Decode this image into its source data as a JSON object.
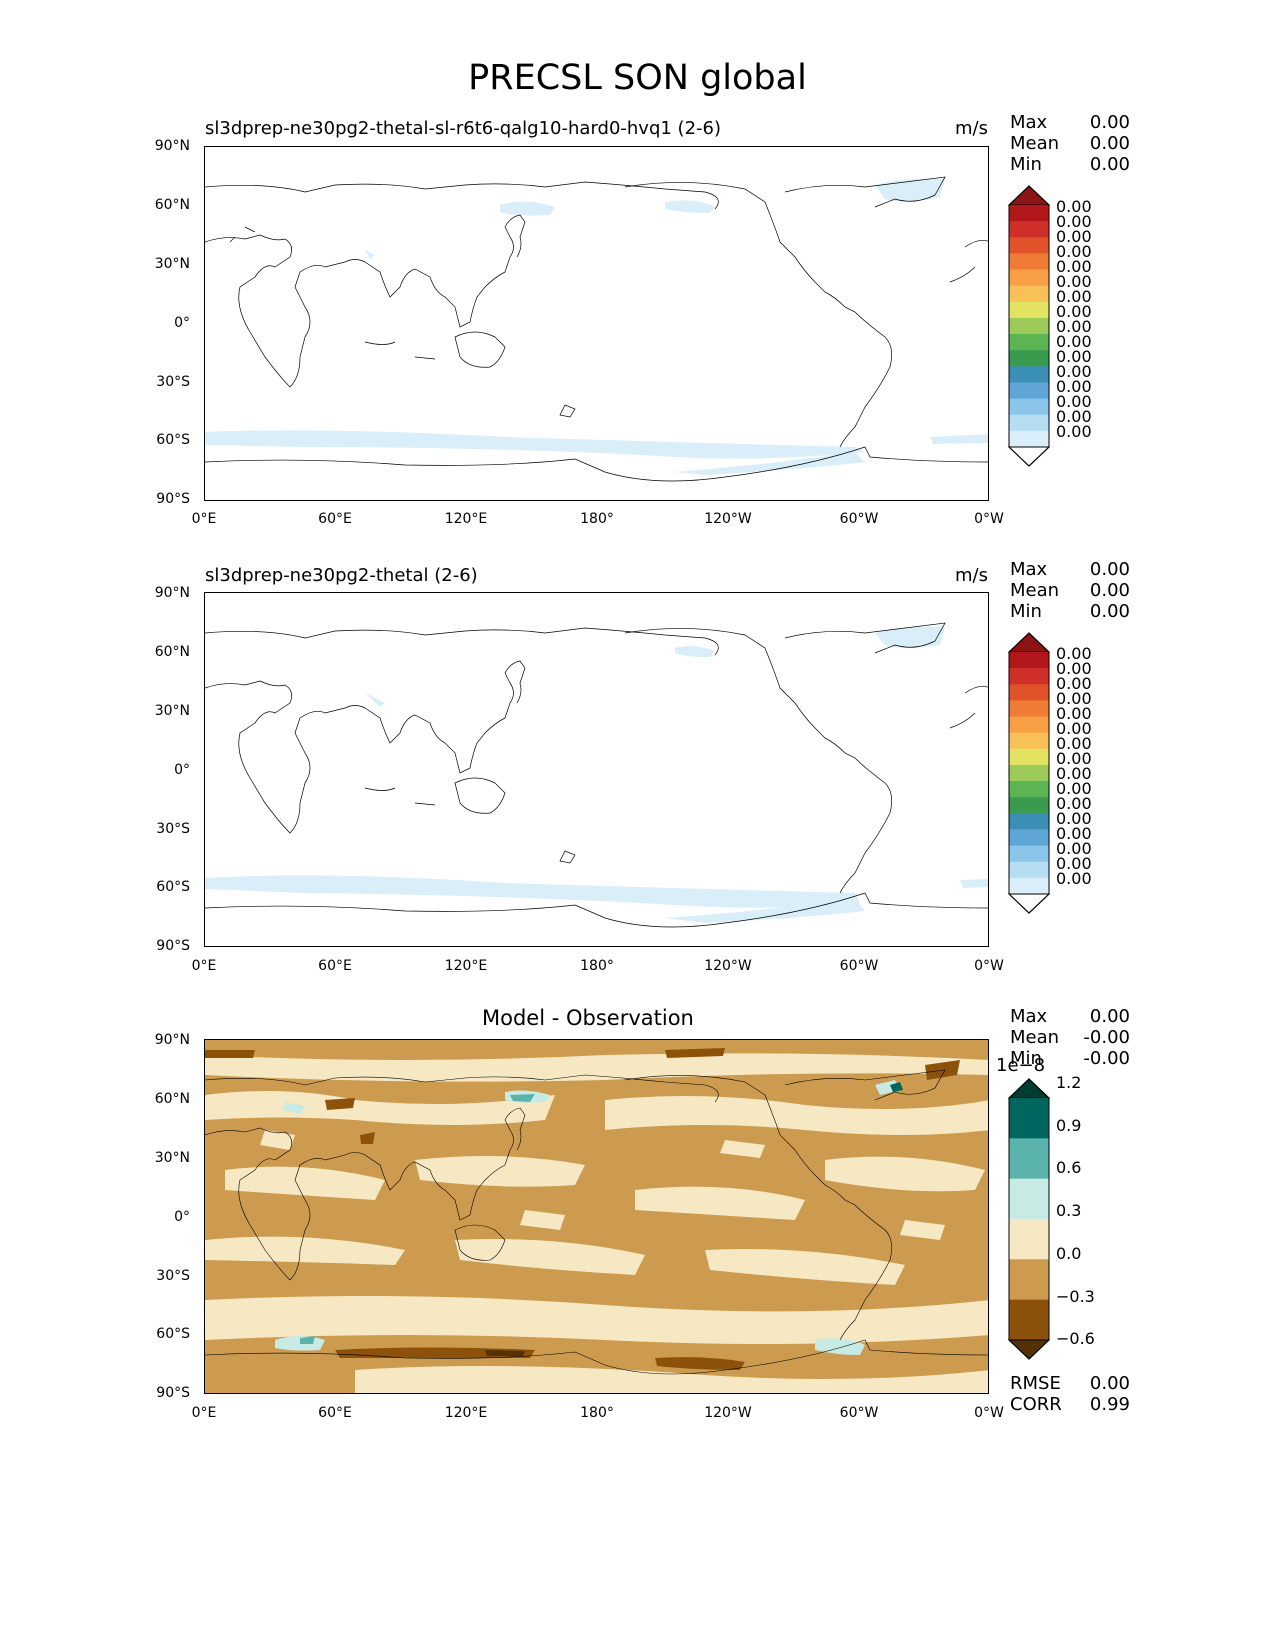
{
  "figure": {
    "title": "PRECSL SON global"
  },
  "axes": {
    "lat_ticks": [
      "90°N",
      "60°N",
      "30°N",
      "0°",
      "30°S",
      "60°S",
      "90°S"
    ],
    "lon_ticks": [
      "0°E",
      "60°E",
      "120°E",
      "180°",
      "120°W",
      "60°W",
      "0°W"
    ]
  },
  "panels": [
    {
      "title": "sl3dprep-ne30pg2-thetal-sl-r6t6-qalg10-hard0-hvq1 (2-6)",
      "units": "m/s",
      "stats": {
        "max_label": "Max",
        "max": "0.00",
        "mean_label": "Mean",
        "mean": "0.00",
        "min_label": "Min",
        "min": "0.00"
      },
      "colorbar_labels": [
        "0.00",
        "0.00",
        "0.00",
        "0.00",
        "0.00",
        "0.00",
        "0.00",
        "0.00",
        "0.00",
        "0.00",
        "0.00",
        "0.00",
        "0.00",
        "0.00",
        "0.00",
        "0.00"
      ]
    },
    {
      "title": "sl3dprep-ne30pg2-thetal (2-6)",
      "units": "m/s",
      "stats": {
        "max_label": "Max",
        "max": "0.00",
        "mean_label": "Mean",
        "mean": "0.00",
        "min_label": "Min",
        "min": "0.00"
      },
      "colorbar_labels": [
        "0.00",
        "0.00",
        "0.00",
        "0.00",
        "0.00",
        "0.00",
        "0.00",
        "0.00",
        "0.00",
        "0.00",
        "0.00",
        "0.00",
        "0.00",
        "0.00",
        "0.00",
        "0.00"
      ]
    },
    {
      "title": "Model - Observation",
      "stats": {
        "max_label": "Max",
        "max": "0.00",
        "mean_label": "Mean",
        "mean": "-0.00",
        "min_label": "Min",
        "min": "-0.00"
      },
      "colorbar_scale": "1e−8",
      "colorbar_labels": [
        "1.2",
        "0.9",
        "0.6",
        "0.3",
        "0.0",
        "−0.3",
        "−0.6"
      ],
      "rmse_label": "RMSE",
      "rmse": "0.00",
      "corr_label": "CORR",
      "corr": "0.99"
    }
  ],
  "colors": {
    "seq_colormap": [
      "#fefefe",
      "#d9eef9",
      "#b6def3",
      "#8cc5ea",
      "#5fa6d6",
      "#3c8fb4",
      "#3a9b4e",
      "#5ab552",
      "#9ccb5a",
      "#e3e362",
      "#f7c158",
      "#f7a045",
      "#f07b34",
      "#e0522a",
      "#cf2f29",
      "#b2181b",
      "#8c1414"
    ],
    "diff_colormap": [
      "#543005",
      "#8c510a",
      "#cc9b50",
      "#f6e8c3",
      "#c7eae5",
      "#5ab4ac",
      "#01665e",
      "#003c30"
    ],
    "coast": "#000000"
  }
}
